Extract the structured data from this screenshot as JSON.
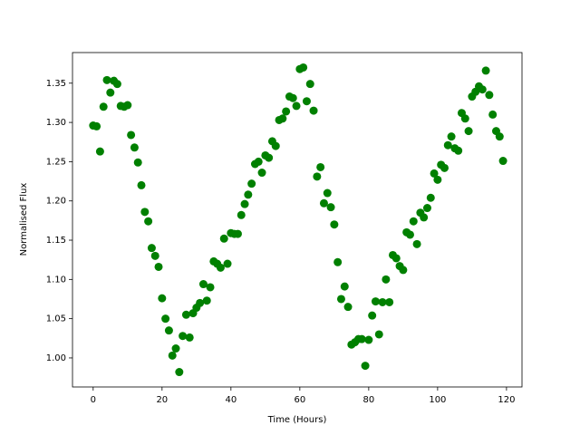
{
  "chart_data": {
    "type": "scatter",
    "xlabel": "Time (Hours)",
    "ylabel": "Normalised Flux",
    "xlim": [
      -6,
      124.5
    ],
    "ylim": [
      0.963,
      1.389
    ],
    "xticks": [
      0,
      20,
      40,
      60,
      80,
      100,
      120
    ],
    "yticks": [
      {
        "value": 1.0,
        "label": "1.00"
      },
      {
        "value": 1.05,
        "label": "1.05"
      },
      {
        "value": 1.1,
        "label": "1.10"
      },
      {
        "value": 1.15,
        "label": "1.15"
      },
      {
        "value": 1.2,
        "label": "1.20"
      },
      {
        "value": 1.25,
        "label": "1.25"
      },
      {
        "value": 1.3,
        "label": "1.30"
      },
      {
        "value": 1.35,
        "label": "1.35"
      }
    ],
    "color": "#008000",
    "x": [
      0,
      1,
      2,
      3,
      4,
      5,
      6,
      7,
      8,
      9,
      10,
      11,
      12,
      13,
      14,
      15,
      16,
      17,
      18,
      19,
      20,
      21,
      22,
      23,
      24,
      25,
      26,
      27,
      28,
      29,
      30,
      31,
      32,
      33,
      34,
      35,
      36,
      37,
      38,
      39,
      40,
      41,
      42,
      43,
      44,
      45,
      46,
      47,
      48,
      49,
      50,
      51,
      52,
      53,
      54,
      55,
      56,
      57,
      58,
      59,
      60,
      61,
      62,
      63,
      64,
      65,
      66,
      67,
      68,
      69,
      70,
      71,
      72,
      73,
      74,
      75,
      76,
      77,
      78,
      79,
      80,
      81,
      82,
      83,
      84,
      85,
      86,
      87,
      88,
      89,
      90,
      91,
      92,
      93,
      94,
      95,
      96,
      97,
      98,
      99,
      100,
      101,
      102,
      103,
      104,
      105,
      106,
      107,
      108,
      109,
      110,
      111,
      112,
      113,
      114,
      115,
      116,
      117,
      118,
      119
    ],
    "values": [
      1.296,
      1.295,
      1.263,
      1.32,
      1.354,
      1.338,
      1.353,
      1.349,
      1.321,
      1.32,
      1.322,
      1.284,
      1.268,
      1.249,
      1.22,
      1.186,
      1.174,
      1.14,
      1.13,
      1.116,
      1.076,
      1.05,
      1.035,
      1.003,
      1.012,
      0.982,
      1.028,
      1.055,
      1.026,
      1.057,
      1.064,
      1.07,
      1.094,
      1.073,
      1.09,
      1.123,
      1.12,
      1.115,
      1.152,
      1.12,
      1.159,
      1.158,
      1.158,
      1.182,
      1.196,
      1.208,
      1.222,
      1.247,
      1.25,
      1.236,
      1.258,
      1.255,
      1.276,
      1.27,
      1.303,
      1.305,
      1.314,
      1.333,
      1.331,
      1.321,
      1.368,
      1.37,
      1.327,
      1.349,
      1.315,
      1.231,
      1.243,
      1.197,
      1.21,
      1.192,
      1.17,
      1.122,
      1.075,
      1.091,
      1.065,
      1.017,
      1.02,
      1.024,
      1.024,
      0.99,
      1.023,
      1.054,
      1.072,
      1.03,
      1.071,
      1.1,
      1.071,
      1.131,
      1.127,
      1.117,
      1.112,
      1.16,
      1.157,
      1.174,
      1.145,
      1.185,
      1.179,
      1.191,
      1.204,
      1.235,
      1.227,
      1.246,
      1.242,
      1.271,
      1.282,
      1.267,
      1.264,
      1.312,
      1.305,
      1.289,
      1.333,
      1.339,
      1.346,
      1.342,
      1.366,
      1.335,
      1.31,
      1.289,
      1.282,
      1.251
    ]
  }
}
